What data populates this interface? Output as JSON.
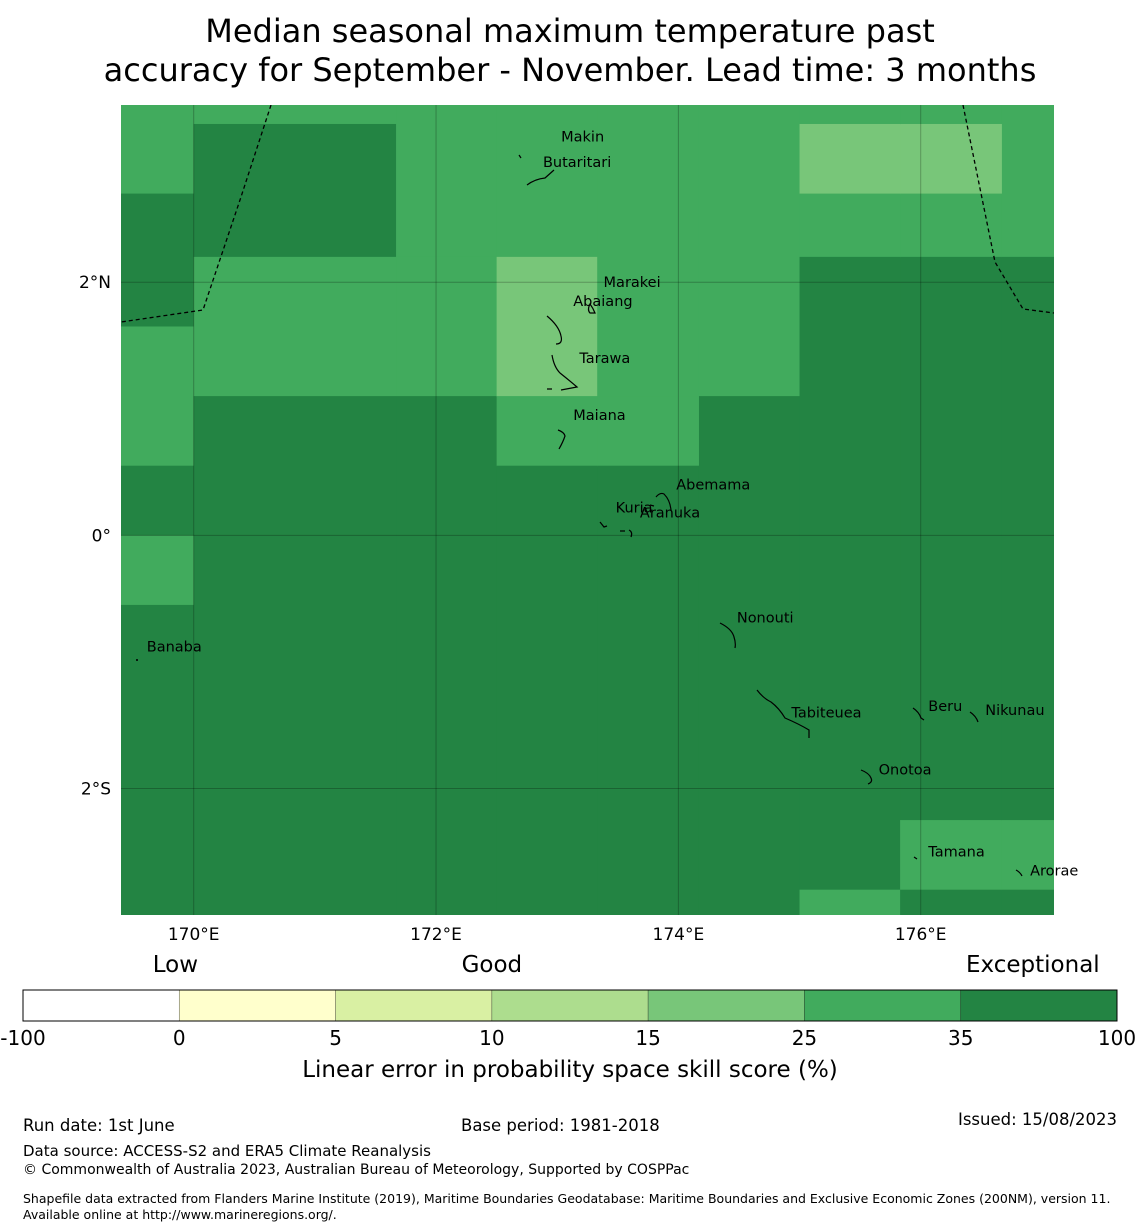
{
  "title_line1": "Median seasonal maximum temperature past",
  "title_line2": "accuracy for September - November. Lead time: 3 months",
  "map": {
    "lon_range": [
      169.4,
      177.1
    ],
    "lat_range": [
      -3.0,
      3.4
    ],
    "lon_ticks": [
      {
        "value": 170,
        "label": "170°E"
      },
      {
        "value": 172,
        "label": "172°E"
      },
      {
        "value": 174,
        "label": "174°E"
      },
      {
        "value": 176,
        "label": "176°E"
      }
    ],
    "lat_ticks": [
      {
        "value": 2,
        "label": "2°N"
      },
      {
        "value": 0,
        "label": "0°"
      },
      {
        "value": -2,
        "label": "2°S"
      }
    ],
    "palette": {
      "c25_35": "#41ab5d",
      "c15_25": "#78c679",
      "c35_100": "#238443"
    },
    "cells": [
      {
        "lon": [
          169.4,
          170.0
        ],
        "lat": [
          2.7,
          3.4
        ],
        "bin": "c25_35"
      },
      {
        "lon": [
          169.4,
          170.0
        ],
        "lat": [
          1.65,
          2.7
        ],
        "bin": "c35_100"
      },
      {
        "lon": [
          169.4,
          170.0
        ],
        "lat": [
          0.55,
          1.65
        ],
        "bin": "c25_35"
      },
      {
        "lon": [
          169.4,
          170.0
        ],
        "lat": [
          0.0,
          0.55
        ],
        "bin": "c35_100"
      },
      {
        "lon": [
          169.4,
          170.0
        ],
        "lat": [
          -0.55,
          0.0
        ],
        "bin": "c25_35"
      },
      {
        "lon": [
          169.4,
          170.0
        ],
        "lat": [
          -3.0,
          -0.55
        ],
        "bin": "c35_100"
      },
      {
        "lon": [
          170.0,
          171.67
        ],
        "lat": [
          3.25,
          3.4
        ],
        "bin": "c25_35"
      },
      {
        "lon": [
          170.0,
          171.67
        ],
        "lat": [
          2.2,
          3.25
        ],
        "bin": "c35_100"
      },
      {
        "lon": [
          170.0,
          171.67
        ],
        "lat": [
          1.1,
          2.2
        ],
        "bin": "c25_35"
      },
      {
        "lon": [
          170.0,
          171.67
        ],
        "lat": [
          -3.0,
          1.1
        ],
        "bin": "c35_100"
      },
      {
        "lon": [
          171.67,
          172.5
        ],
        "lat": [
          2.2,
          3.4
        ],
        "bin": "c25_35"
      },
      {
        "lon": [
          171.67,
          172.5
        ],
        "lat": [
          1.1,
          2.2
        ],
        "bin": "c25_35"
      },
      {
        "lon": [
          171.67,
          172.5
        ],
        "lat": [
          -3.0,
          1.1
        ],
        "bin": "c35_100"
      },
      {
        "lon": [
          172.5,
          173.33
        ],
        "lat": [
          2.2,
          3.4
        ],
        "bin": "c25_35"
      },
      {
        "lon": [
          172.5,
          173.33
        ],
        "lat": [
          1.1,
          2.2
        ],
        "bin": "c15_25"
      },
      {
        "lon": [
          172.5,
          173.33
        ],
        "lat": [
          0.55,
          1.1
        ],
        "bin": "c25_35"
      },
      {
        "lon": [
          172.5,
          173.33
        ],
        "lat": [
          -3.0,
          0.55
        ],
        "bin": "c35_100"
      },
      {
        "lon": [
          173.33,
          174.17
        ],
        "lat": [
          1.1,
          3.4
        ],
        "bin": "c25_35"
      },
      {
        "lon": [
          173.33,
          174.17
        ],
        "lat": [
          0.55,
          1.1
        ],
        "bin": "c25_35"
      },
      {
        "lon": [
          173.33,
          174.17
        ],
        "lat": [
          -3.0,
          0.55
        ],
        "bin": "c35_100"
      },
      {
        "lon": [
          174.17,
          175.0
        ],
        "lat": [
          1.1,
          3.4
        ],
        "bin": "c25_35"
      },
      {
        "lon": [
          174.17,
          175.0
        ],
        "lat": [
          -3.0,
          1.1
        ],
        "bin": "c35_100"
      },
      {
        "lon": [
          175.0,
          175.83
        ],
        "lat": [
          3.25,
          3.4
        ],
        "bin": "c25_35"
      },
      {
        "lon": [
          175.0,
          175.83
        ],
        "lat": [
          2.7,
          3.25
        ],
        "bin": "c15_25"
      },
      {
        "lon": [
          175.0,
          175.83
        ],
        "lat": [
          2.2,
          2.7
        ],
        "bin": "c25_35"
      },
      {
        "lon": [
          175.0,
          175.83
        ],
        "lat": [
          -2.8,
          2.2
        ],
        "bin": "c35_100"
      },
      {
        "lon": [
          175.0,
          175.83
        ],
        "lat": [
          -3.0,
          -2.8
        ],
        "bin": "c25_35"
      },
      {
        "lon": [
          175.83,
          176.67
        ],
        "lat": [
          3.25,
          3.4
        ],
        "bin": "c25_35"
      },
      {
        "lon": [
          175.83,
          176.67
        ],
        "lat": [
          2.7,
          3.25
        ],
        "bin": "c15_25"
      },
      {
        "lon": [
          175.83,
          176.67
        ],
        "lat": [
          2.2,
          2.7
        ],
        "bin": "c25_35"
      },
      {
        "lon": [
          175.83,
          176.67
        ],
        "lat": [
          -2.25,
          2.2
        ],
        "bin": "c35_100"
      },
      {
        "lon": [
          175.83,
          176.67
        ],
        "lat": [
          -2.8,
          -2.25
        ],
        "bin": "c25_35"
      },
      {
        "lon": [
          175.83,
          176.67
        ],
        "lat": [
          -3.0,
          -2.8
        ],
        "bin": "c35_100"
      },
      {
        "lon": [
          176.67,
          177.1
        ],
        "lat": [
          2.2,
          3.4
        ],
        "bin": "c25_35"
      },
      {
        "lon": [
          176.67,
          177.1
        ],
        "lat": [
          -2.25,
          2.2
        ],
        "bin": "c35_100"
      },
      {
        "lon": [
          176.67,
          177.1
        ],
        "lat": [
          -2.8,
          -2.25
        ],
        "bin": "c25_35"
      },
      {
        "lon": [
          176.67,
          177.1
        ],
        "lat": [
          -3.0,
          -2.8
        ],
        "bin": "c35_100"
      }
    ],
    "places": [
      {
        "name": "Makin",
        "lon": 172.95,
        "lat": 3.15
      },
      {
        "name": "Butaritari",
        "lon": 172.8,
        "lat": 2.95
      },
      {
        "name": "Marakei",
        "lon": 173.3,
        "lat": 2.0
      },
      {
        "name": "Abaiang",
        "lon": 173.05,
        "lat": 1.85
      },
      {
        "name": "Tarawa",
        "lon": 173.1,
        "lat": 1.4
      },
      {
        "name": "Maiana",
        "lon": 173.05,
        "lat": 0.95
      },
      {
        "name": "Abemama",
        "lon": 173.9,
        "lat": 0.4
      },
      {
        "name": "Kuria",
        "lon": 173.4,
        "lat": 0.22
      },
      {
        "name": "Aranuka",
        "lon": 173.6,
        "lat": 0.18
      },
      {
        "name": "Nonouti",
        "lon": 174.4,
        "lat": -0.65
      },
      {
        "name": "Banaba",
        "lon": 169.53,
        "lat": -0.88
      },
      {
        "name": "Tabiteuea",
        "lon": 174.85,
        "lat": -1.4
      },
      {
        "name": "Beru",
        "lon": 175.98,
        "lat": -1.35
      },
      {
        "name": "Nikunau",
        "lon": 176.45,
        "lat": -1.38
      },
      {
        "name": "Onotoa",
        "lon": 175.57,
        "lat": -1.85
      },
      {
        "name": "Tamana",
        "lon": 175.98,
        "lat": -2.5
      },
      {
        "name": "Arorae",
        "lon": 176.82,
        "lat": -2.65
      }
    ]
  },
  "legend": {
    "categories": [
      {
        "label": "Low",
        "at": -2.5
      },
      {
        "label": "Good",
        "at": 10
      },
      {
        "label": "Exceptional",
        "at": 65
      }
    ],
    "bins": [
      {
        "from": -100,
        "to": 0,
        "color": "#ffffff"
      },
      {
        "from": 0,
        "to": 5,
        "color": "#ffffcc"
      },
      {
        "from": 5,
        "to": 10,
        "color": "#d9f0a3"
      },
      {
        "from": 10,
        "to": 15,
        "color": "#addd8e"
      },
      {
        "from": 15,
        "to": 25,
        "color": "#78c679"
      },
      {
        "from": 25,
        "to": 35,
        "color": "#41ab5d"
      },
      {
        "from": 35,
        "to": 100,
        "color": "#238443"
      }
    ],
    "ticks": [
      "-100",
      "0",
      "5",
      "10",
      "15",
      "25",
      "35",
      "100"
    ],
    "title": "Linear error in probability space skill score (%)"
  },
  "footer": {
    "run_date": "Run date: 1st June",
    "base_period": "Base period: 1981-2018",
    "issued": "Issued: 15/08/2023",
    "data_source": "Data source: ACCESS-S2 and ERA5 Climate Reanalysis",
    "copyright": "© Commonwealth of Australia 2023, Australian Bureau of Meteorology, Supported by COSPPac",
    "shapefile": "Shapefile data extracted from Flanders Marine Institute (2019), Maritime Boundaries Geodatabase: Maritime Boundaries and Exclusive Economic Zones (200NM), version 11. Available online at http://www.marineregions.org/."
  }
}
